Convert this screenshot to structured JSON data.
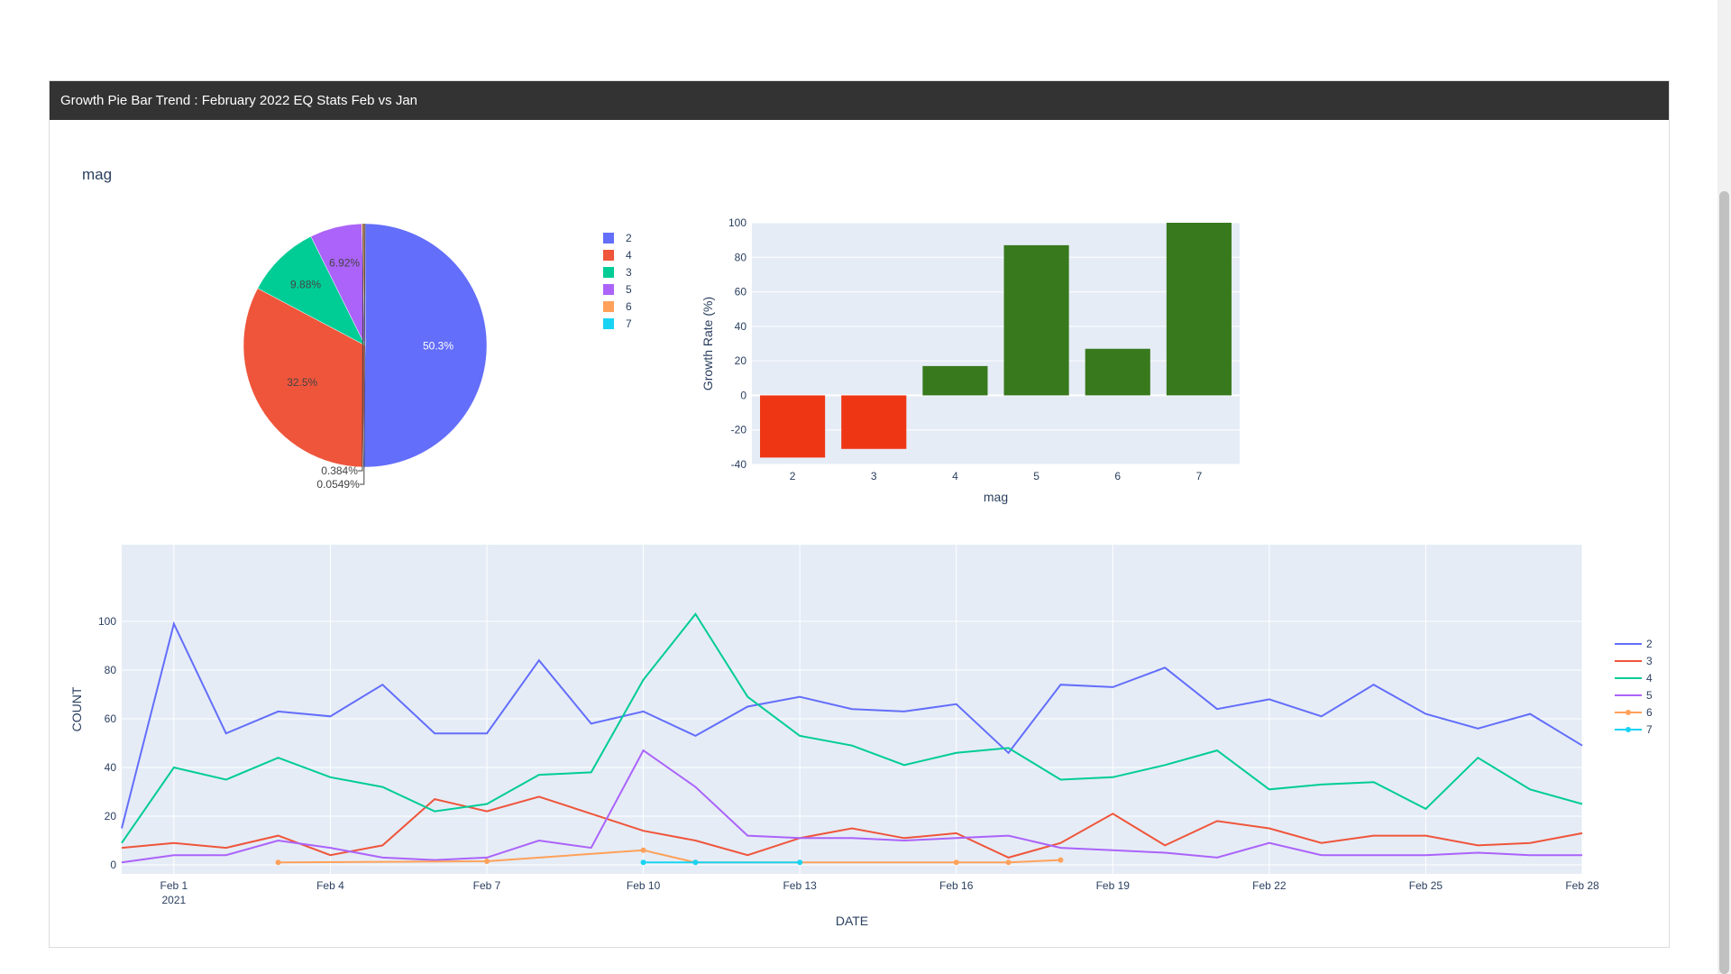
{
  "panel": {
    "title": "Growth Pie Bar Trend : February 2022 EQ Stats Feb vs Jan"
  },
  "pie_subtitle": "mag",
  "chart_data": [
    {
      "type": "pie",
      "title": "mag",
      "labels": [
        "2",
        "4",
        "3",
        "5",
        "6",
        "7"
      ],
      "values": [
        50.3,
        32.5,
        9.88,
        6.92,
        0.384,
        0.0549
      ],
      "text": [
        "50.3%",
        "32.5%",
        "9.88%",
        "6.92%",
        "0.384%",
        "0.0549%"
      ],
      "colors": [
        "#636efa",
        "#ef553b",
        "#00cc96",
        "#ab63fa",
        "#ffa15a",
        "#19d3f3"
      ],
      "legend": "right"
    },
    {
      "type": "bar",
      "categories": [
        "2",
        "3",
        "4",
        "5",
        "6",
        "7"
      ],
      "values": [
        -36,
        -31,
        17,
        87,
        27,
        100
      ],
      "colors": [
        "#ef3614",
        "#ef3614",
        "#38791d",
        "#38791d",
        "#38791d",
        "#38791d"
      ],
      "xlabel": "mag",
      "ylabel": "Growth Rate (%)",
      "ylim": [
        -40,
        100
      ],
      "yticks": [
        -40,
        -20,
        0,
        20,
        40,
        60,
        80,
        100
      ],
      "grid": true
    },
    {
      "type": "line",
      "xlabel": "DATE",
      "ylabel": "COUNT",
      "ylim": [
        0,
        100
      ],
      "yticks": [
        0,
        20,
        40,
        60,
        80,
        100
      ],
      "xlim": [
        "2021-01-31",
        "2021-02-28"
      ],
      "xticks": [
        "Feb 1",
        "Feb 4",
        "Feb 7",
        "Feb 10",
        "Feb 13",
        "Feb 16",
        "Feb 19",
        "Feb 22",
        "Feb 25",
        "Feb 28"
      ],
      "xtick_year": "2021",
      "legend": "right",
      "series": [
        {
          "name": "2",
          "color": "#636efa",
          "markers": false,
          "dates": [
            "2021-01-31",
            "2021-02-01",
            "2021-02-02",
            "2021-02-03",
            "2021-02-04",
            "2021-02-05",
            "2021-02-06",
            "2021-02-07",
            "2021-02-08",
            "2021-02-09",
            "2021-02-10",
            "2021-02-11",
            "2021-02-12",
            "2021-02-13",
            "2021-02-14",
            "2021-02-15",
            "2021-02-16",
            "2021-02-17",
            "2021-02-18",
            "2021-02-19",
            "2021-02-20",
            "2021-02-21",
            "2021-02-22",
            "2021-02-23",
            "2021-02-24",
            "2021-02-25",
            "2021-02-26",
            "2021-02-27",
            "2021-02-28"
          ],
          "values": [
            15,
            99,
            54,
            63,
            61,
            74,
            54,
            54,
            84,
            58,
            63,
            53,
            65,
            69,
            64,
            63,
            66,
            46,
            74,
            73,
            81,
            64,
            68,
            61,
            74,
            62,
            56,
            62,
            49
          ]
        },
        {
          "name": "3",
          "color": "#ef553b",
          "markers": false,
          "dates": [
            "2021-01-31",
            "2021-02-01",
            "2021-02-02",
            "2021-02-03",
            "2021-02-04",
            "2021-02-05",
            "2021-02-06",
            "2021-02-07",
            "2021-02-08",
            "2021-02-09",
            "2021-02-10",
            "2021-02-11",
            "2021-02-12",
            "2021-02-13",
            "2021-02-14",
            "2021-02-15",
            "2021-02-16",
            "2021-02-17",
            "2021-02-18",
            "2021-02-19",
            "2021-02-20",
            "2021-02-21",
            "2021-02-22",
            "2021-02-23",
            "2021-02-24",
            "2021-02-25",
            "2021-02-26",
            "2021-02-27",
            "2021-02-28"
          ],
          "values": [
            7,
            9,
            7,
            12,
            4,
            8,
            27,
            22,
            28,
            21,
            14,
            10,
            4,
            11,
            15,
            11,
            13,
            3,
            9,
            21,
            8,
            18,
            15,
            9,
            12,
            12,
            8,
            9,
            13
          ]
        },
        {
          "name": "4",
          "color": "#00cc96",
          "markers": false,
          "dates": [
            "2021-01-31",
            "2021-02-01",
            "2021-02-02",
            "2021-02-03",
            "2021-02-04",
            "2021-02-05",
            "2021-02-06",
            "2021-02-07",
            "2021-02-08",
            "2021-02-09",
            "2021-02-10",
            "2021-02-11",
            "2021-02-12",
            "2021-02-13",
            "2021-02-14",
            "2021-02-15",
            "2021-02-16",
            "2021-02-17",
            "2021-02-18",
            "2021-02-19",
            "2021-02-20",
            "2021-02-21",
            "2021-02-22",
            "2021-02-23",
            "2021-02-24",
            "2021-02-25",
            "2021-02-26",
            "2021-02-27",
            "2021-02-28"
          ],
          "values": [
            9,
            40,
            35,
            44,
            36,
            32,
            22,
            25,
            37,
            38,
            76,
            103,
            69,
            53,
            49,
            41,
            46,
            48,
            35,
            36,
            41,
            47,
            31,
            33,
            34,
            23,
            44,
            31,
            25
          ]
        },
        {
          "name": "5",
          "color": "#ab63fa",
          "markers": false,
          "dates": [
            "2021-01-31",
            "2021-02-01",
            "2021-02-02",
            "2021-02-03",
            "2021-02-04",
            "2021-02-05",
            "2021-02-06",
            "2021-02-07",
            "2021-02-08",
            "2021-02-09",
            "2021-02-10",
            "2021-02-11",
            "2021-02-12",
            "2021-02-13",
            "2021-02-14",
            "2021-02-15",
            "2021-02-16",
            "2021-02-17",
            "2021-02-18",
            "2021-02-19",
            "2021-02-20",
            "2021-02-21",
            "2021-02-22",
            "2021-02-23",
            "2021-02-24",
            "2021-02-25",
            "2021-02-26",
            "2021-02-27",
            "2021-02-28"
          ],
          "values": [
            1,
            4,
            4,
            10,
            7,
            3,
            2,
            3,
            10,
            7,
            47,
            32,
            12,
            11,
            11,
            10,
            11,
            12,
            7,
            6,
            5,
            3,
            9,
            4,
            4,
            4,
            5,
            4,
            4
          ]
        },
        {
          "name": "6",
          "color": "#ffa15a",
          "markers": true,
          "dates": [
            "2021-02-03",
            "2021-02-07",
            "2021-02-10",
            "2021-02-11",
            "2021-02-16",
            "2021-02-17",
            "2021-02-18"
          ],
          "values": [
            1,
            1.5,
            6,
            1,
            1,
            1,
            2
          ]
        },
        {
          "name": "7",
          "color": "#19d3f3",
          "markers": true,
          "dates": [
            "2021-02-10",
            "2021-02-11",
            "2021-02-13"
          ],
          "values": [
            1,
            1,
            1
          ]
        }
      ]
    }
  ]
}
